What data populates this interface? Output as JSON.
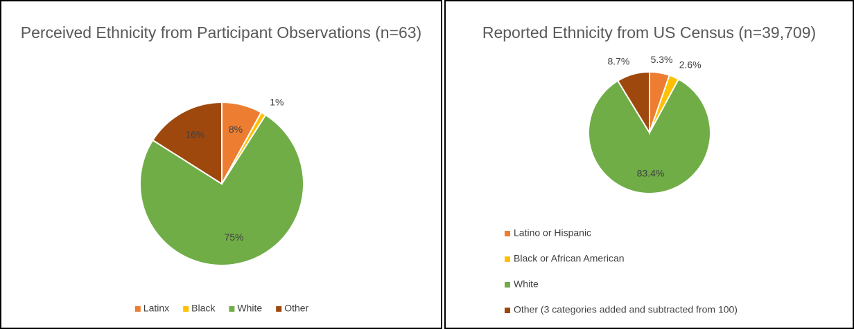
{
  "chart_data": [
    {
      "type": "pie",
      "title": "Perceived Ethnicity from Participant Observations (n=63)",
      "categories": [
        "Latinx",
        "Black",
        "White",
        "Other"
      ],
      "values": [
        8,
        1,
        75,
        16
      ],
      "value_labels": [
        "8%",
        "1%",
        "75%",
        "16%"
      ],
      "colors": [
        "#ed7d31",
        "#ffc000",
        "#70ad47",
        "#9e480e"
      ],
      "legend": "bottom"
    },
    {
      "type": "pie",
      "title": "Reported Ethnicity from US Census (n=39,709)",
      "categories": [
        "Latino or Hispanic",
        "Black or African American",
        "White",
        "Other (3 categories added and subtracted from 100)"
      ],
      "values": [
        5.3,
        2.6,
        83.4,
        8.7
      ],
      "value_labels": [
        "5.3%",
        "2.6%",
        "83.4%",
        "8.7%"
      ],
      "colors": [
        "#ed7d31",
        "#ffc000",
        "#70ad47",
        "#9e480e"
      ],
      "legend": "bottom"
    }
  ]
}
